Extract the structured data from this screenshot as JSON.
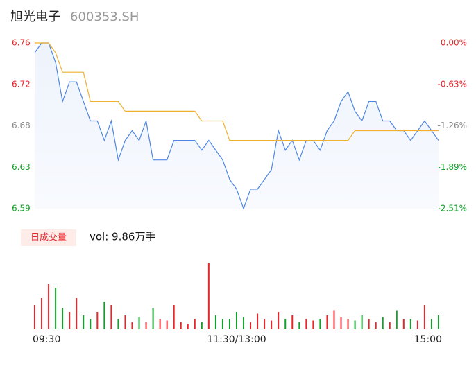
{
  "chart_data": {
    "type": "line",
    "title": "旭光电子",
    "subtitle": "600353.SH",
    "categories": [
      "09:30",
      null,
      null,
      null,
      null,
      null,
      null,
      null,
      null,
      null,
      null,
      null,
      null,
      null,
      null,
      null,
      null,
      null,
      null,
      null,
      null,
      null,
      null,
      null,
      null,
      null,
      null,
      null,
      null,
      "11:30/13:00",
      null,
      null,
      null,
      null,
      null,
      null,
      null,
      null,
      null,
      null,
      null,
      null,
      null,
      null,
      null,
      null,
      null,
      null,
      null,
      null,
      null,
      null,
      null,
      null,
      null,
      null,
      null,
      null,
      "15:00"
    ],
    "series": [
      {
        "name": "price",
        "color": "#4e86e4",
        "values": [
          6.75,
          6.76,
          6.76,
          6.74,
          6.7,
          6.72,
          6.72,
          6.7,
          6.68,
          6.68,
          6.66,
          6.68,
          6.64,
          6.66,
          6.67,
          6.66,
          6.68,
          6.64,
          6.64,
          6.64,
          6.66,
          6.66,
          6.66,
          6.66,
          6.65,
          6.66,
          6.65,
          6.64,
          6.62,
          6.61,
          6.59,
          6.61,
          6.61,
          6.62,
          6.63,
          6.67,
          6.65,
          6.66,
          6.64,
          6.66,
          6.66,
          6.65,
          6.67,
          6.68,
          6.7,
          6.71,
          6.69,
          6.68,
          6.7,
          6.7,
          6.68,
          6.68,
          6.67,
          6.67,
          6.66,
          6.67,
          6.68,
          6.67,
          6.66
        ]
      },
      {
        "name": "average",
        "color": "#f0b030",
        "values": [
          6.76,
          6.76,
          6.76,
          6.75,
          6.73,
          6.73,
          6.73,
          6.73,
          6.7,
          6.7,
          6.7,
          6.7,
          6.7,
          6.69,
          6.69,
          6.69,
          6.69,
          6.69,
          6.69,
          6.69,
          6.69,
          6.69,
          6.69,
          6.69,
          6.68,
          6.68,
          6.68,
          6.68,
          6.66,
          6.66,
          6.66,
          6.66,
          6.66,
          6.66,
          6.66,
          6.66,
          6.66,
          6.66,
          6.66,
          6.66,
          6.66,
          6.66,
          6.66,
          6.66,
          6.66,
          6.66,
          6.67,
          6.67,
          6.67,
          6.67,
          6.67,
          6.67,
          6.67,
          6.67,
          6.67,
          6.67,
          6.67,
          6.67,
          6.67
        ]
      },
      {
        "name": "volume",
        "axis": "volume",
        "values": [
          700,
          900,
          1300,
          1200,
          600,
          500,
          900,
          400,
          300,
          500,
          800,
          700,
          300,
          400,
          200,
          350,
          200,
          600,
          300,
          250,
          700,
          200,
          150,
          300,
          200,
          1900,
          400,
          300,
          300,
          500,
          350,
          200,
          450,
          300,
          250,
          500,
          300,
          400,
          200,
          300,
          250,
          300,
          400,
          550,
          350,
          300,
          250,
          400,
          300,
          200,
          350,
          200,
          550,
          300,
          300,
          250,
          700,
          300,
          400
        ]
      }
    ],
    "ylim": [
      6.59,
      6.76
    ],
    "yticks": [
      6.76,
      {
        "value": 6.7175,
        "label": "6.72"
      },
      {
        "value": 6.675,
        "label": "6.68"
      },
      {
        "value": 6.6325,
        "label": "6.63"
      },
      6.59
    ],
    "y2lim": [
      -2.51,
      0
    ],
    "y2ticks": [
      {
        "value": 0,
        "label": "0.00%"
      },
      {
        "value": -0.6275,
        "label": "-0.63%"
      },
      {
        "value": -1.255,
        "label": "-1.26%"
      },
      {
        "value": -1.8825,
        "label": "-1.89%"
      },
      {
        "value": -2.51,
        "label": "-2.51%"
      }
    ],
    "volume_ylim": [
      0,
      2000
    ],
    "volume_button": "日成交量",
    "volume_label": "vol: 9.86万手",
    "up_color": "#e8262b",
    "down_color": "#12a22a",
    "flat_color": "#888888"
  }
}
